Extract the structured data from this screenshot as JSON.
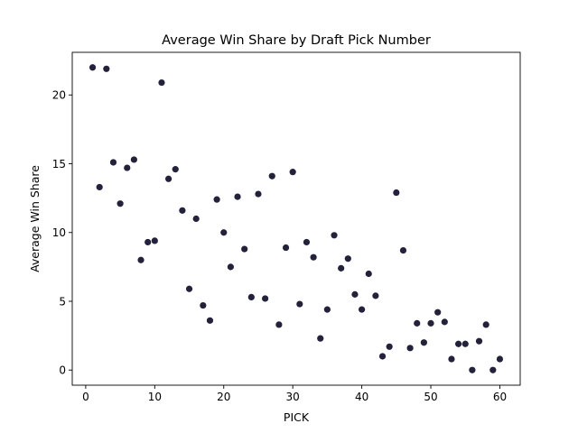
{
  "chart_data": {
    "type": "scatter",
    "title": "Average Win Share by Draft Pick Number",
    "xlabel": "PICK",
    "ylabel": "Average Win Share",
    "xlim": [
      -1.95,
      62.95
    ],
    "ylim": [
      -1.1,
      23.1
    ],
    "xticks": [
      0,
      10,
      20,
      30,
      40,
      50,
      60
    ],
    "yticks": [
      0,
      5,
      10,
      15,
      20
    ],
    "grid": false,
    "marker_color": "#24223b",
    "points": [
      {
        "x": 1,
        "y": 22.0
      },
      {
        "x": 2,
        "y": 13.3
      },
      {
        "x": 3,
        "y": 21.9
      },
      {
        "x": 4,
        "y": 15.1
      },
      {
        "x": 5,
        "y": 12.1
      },
      {
        "x": 6,
        "y": 14.7
      },
      {
        "x": 7,
        "y": 15.3
      },
      {
        "x": 8,
        "y": 8.0
      },
      {
        "x": 9,
        "y": 9.3
      },
      {
        "x": 10,
        "y": 9.4
      },
      {
        "x": 11,
        "y": 20.9
      },
      {
        "x": 12,
        "y": 13.9
      },
      {
        "x": 13,
        "y": 14.6
      },
      {
        "x": 14,
        "y": 11.6
      },
      {
        "x": 15,
        "y": 5.9
      },
      {
        "x": 16,
        "y": 11.0
      },
      {
        "x": 17,
        "y": 4.7
      },
      {
        "x": 18,
        "y": 3.6
      },
      {
        "x": 19,
        "y": 12.4
      },
      {
        "x": 20,
        "y": 10.0
      },
      {
        "x": 21,
        "y": 7.5
      },
      {
        "x": 22,
        "y": 12.6
      },
      {
        "x": 23,
        "y": 8.8
      },
      {
        "x": 24,
        "y": 5.3
      },
      {
        "x": 25,
        "y": 12.8
      },
      {
        "x": 26,
        "y": 5.2
      },
      {
        "x": 27,
        "y": 14.1
      },
      {
        "x": 28,
        "y": 3.3
      },
      {
        "x": 29,
        "y": 8.9
      },
      {
        "x": 30,
        "y": 14.4
      },
      {
        "x": 31,
        "y": 4.8
      },
      {
        "x": 32,
        "y": 9.3
      },
      {
        "x": 33,
        "y": 8.2
      },
      {
        "x": 34,
        "y": 2.3
      },
      {
        "x": 35,
        "y": 4.4
      },
      {
        "x": 36,
        "y": 9.8
      },
      {
        "x": 37,
        "y": 7.4
      },
      {
        "x": 38,
        "y": 8.1
      },
      {
        "x": 39,
        "y": 5.5
      },
      {
        "x": 40,
        "y": 4.4
      },
      {
        "x": 41,
        "y": 7.0
      },
      {
        "x": 42,
        "y": 5.4
      },
      {
        "x": 43,
        "y": 1.0
      },
      {
        "x": 44,
        "y": 1.7
      },
      {
        "x": 45,
        "y": 12.9
      },
      {
        "x": 46,
        "y": 8.7
      },
      {
        "x": 47,
        "y": 1.6
      },
      {
        "x": 48,
        "y": 3.4
      },
      {
        "x": 49,
        "y": 2.0
      },
      {
        "x": 50,
        "y": 3.4
      },
      {
        "x": 51,
        "y": 4.2
      },
      {
        "x": 52,
        "y": 3.5
      },
      {
        "x": 53,
        "y": 0.8
      },
      {
        "x": 54,
        "y": 1.9
      },
      {
        "x": 55,
        "y": 1.9
      },
      {
        "x": 56,
        "y": 0.0
      },
      {
        "x": 57,
        "y": 2.1
      },
      {
        "x": 58,
        "y": 3.3
      },
      {
        "x": 59,
        "y": 0.0
      },
      {
        "x": 60,
        "y": 0.8
      }
    ]
  }
}
